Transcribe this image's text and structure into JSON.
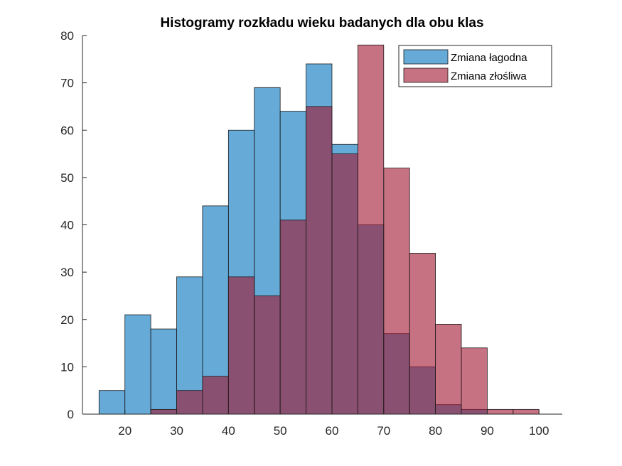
{
  "chart_data": {
    "type": "histogram",
    "title": "Histogramy rozkładu wieku badanych dla obu klas",
    "xlabel": "",
    "ylabel": "",
    "xlim": [
      11.8,
      104.5
    ],
    "ylim": [
      0,
      80
    ],
    "xticks": [
      20,
      30,
      40,
      50,
      60,
      70,
      80,
      90,
      100
    ],
    "yticks": [
      0,
      10,
      20,
      30,
      40,
      50,
      60,
      70,
      80
    ],
    "bin_edges": [
      15,
      20,
      25,
      30,
      35,
      40,
      45,
      50,
      55,
      60,
      65,
      70,
      75,
      80,
      85,
      90,
      95,
      100
    ],
    "grid": false,
    "legend_position": "top-right",
    "series": [
      {
        "name": "Zmiana łagodna",
        "color": "#0072BD",
        "values": [
          5,
          21,
          18,
          29,
          44,
          60,
          69,
          64,
          74,
          57,
          40,
          17,
          10,
          2,
          1,
          0,
          0
        ]
      },
      {
        "name": "Zmiana złośliwa",
        "color": "#A2142F",
        "values": [
          0,
          0,
          1,
          5,
          8,
          29,
          25,
          41,
          65,
          55,
          78,
          52,
          34,
          19,
          14,
          1,
          1
        ]
      }
    ]
  }
}
